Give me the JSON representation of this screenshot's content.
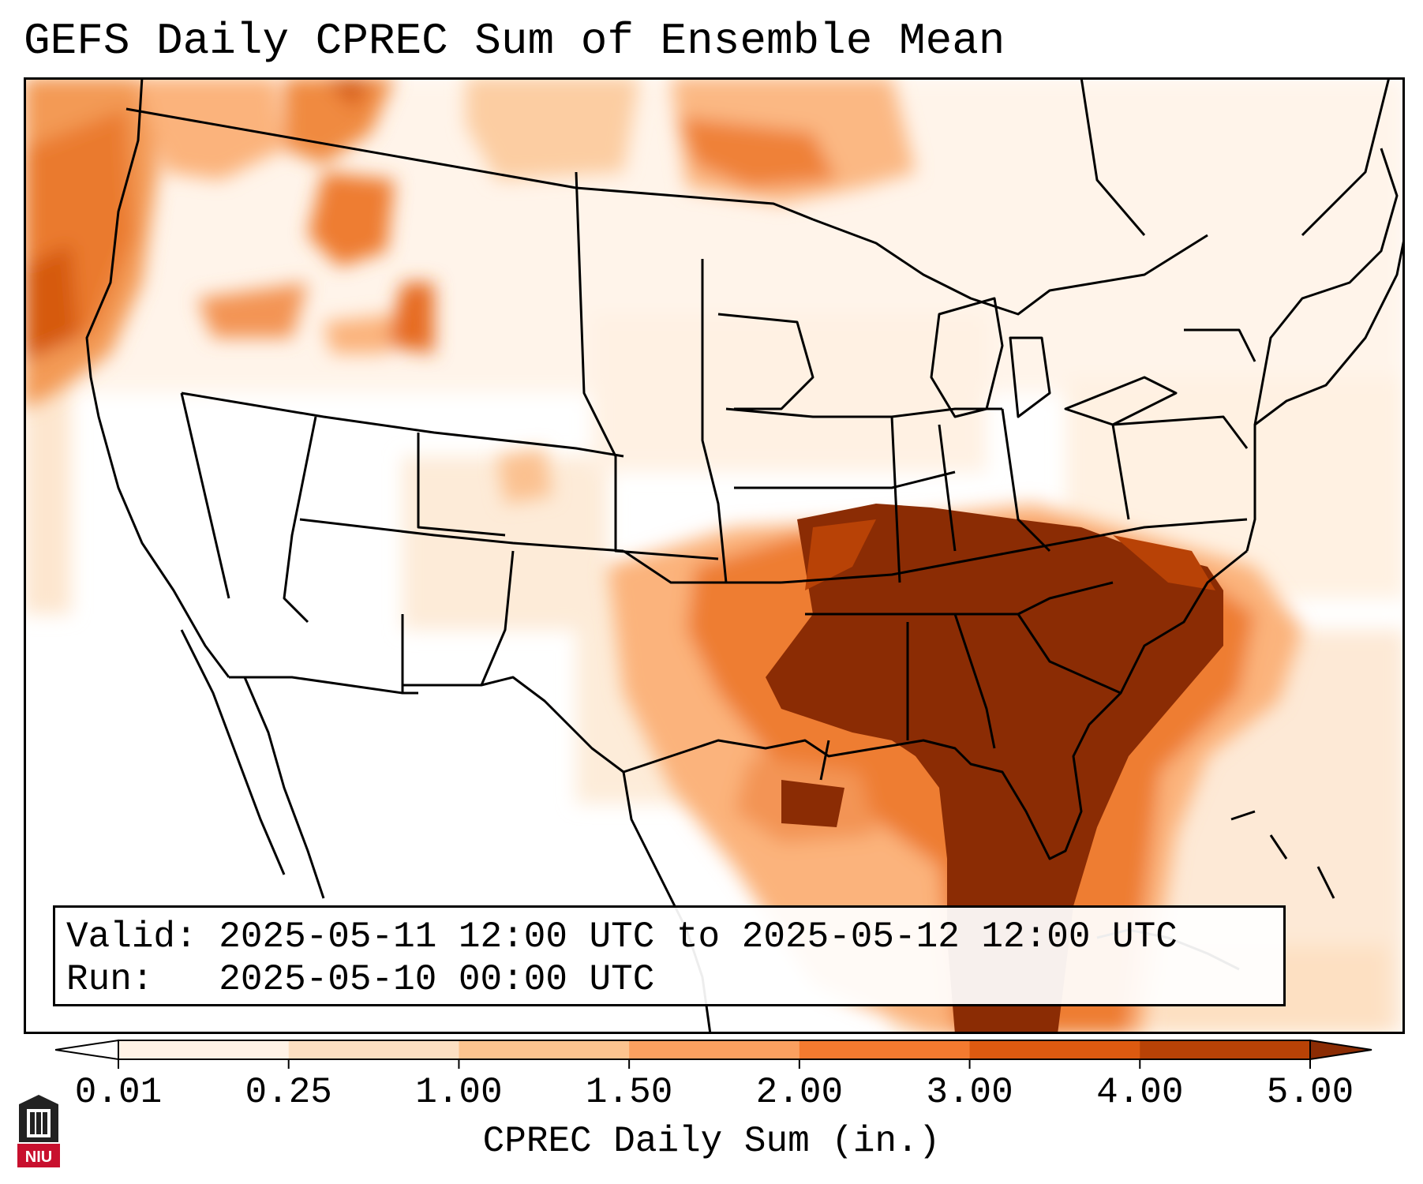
{
  "header": {
    "title": "GEFS Daily CPREC Sum of Ensemble Mean"
  },
  "info": {
    "valid_label": "Valid:",
    "valid_value": "2025-05-11 12:00 UTC to 2025-05-12 12:00 UTC",
    "run_label": "Run:",
    "run_value": "2025-05-10 00:00 UTC"
  },
  "colorbar": {
    "title": "CPREC Daily Sum (in.)",
    "ticks": [
      "0.01",
      "0.25",
      "1.00",
      "1.50",
      "2.00",
      "3.00",
      "4.00",
      "5.00"
    ],
    "colors": [
      "#fff3e6",
      "#fde0c2",
      "#fdc48f",
      "#fba060",
      "#f47a2f",
      "#dd5a10",
      "#b84206"
    ],
    "over_color": "#8b2c04",
    "extend": "both"
  },
  "logo": {
    "text": "NIU"
  }
}
